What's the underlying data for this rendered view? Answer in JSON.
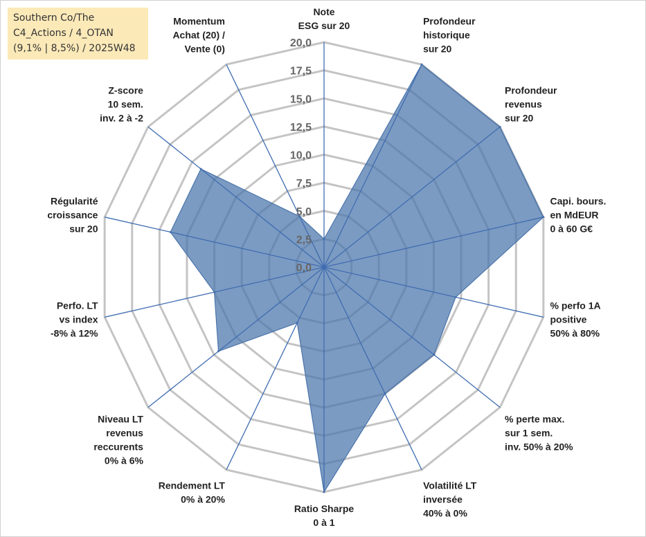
{
  "chart_data": {
    "type": "radar",
    "title_lines": [
      "Southern Co/The",
      "C4_Actions / 4_OTAN",
      "(9,1% | 8,5%) / 2025W48"
    ],
    "rmin": 0,
    "rmax": 20,
    "ticks": [
      "0,0",
      "2,5",
      "5,0",
      "7,5",
      "10,0",
      "12,5",
      "15,0",
      "17,5",
      "20,0"
    ],
    "grid": true,
    "series": [
      {
        "name": "Southern Co/The",
        "color": "#4a74ab",
        "fill_opacity": 0.72
      }
    ],
    "axes": [
      {
        "label_lines": [
          "Note",
          "ESG sur 20"
        ],
        "value": 2.5
      },
      {
        "label_lines": [
          "Profondeur",
          "historique",
          "sur 20"
        ],
        "value": 20
      },
      {
        "label_lines": [
          "Profondeur",
          "revenus",
          "sur 20"
        ],
        "value": 20
      },
      {
        "label_lines": [
          "Capi. bours.",
          "en MdEUR",
          "0 à 60 G€"
        ],
        "value": 20
      },
      {
        "label_lines": [
          "% perfo 1A",
          "positive",
          "50% à 80%"
        ],
        "value": 12
      },
      {
        "label_lines": [
          "% perte max.",
          "sur 1 sem.",
          "inv. 50% à 20%"
        ],
        "value": 12.5
      },
      {
        "label_lines": [
          "Volatilité LT",
          "inversée",
          "40% à 0%"
        ],
        "value": 12.5
      },
      {
        "label_lines": [
          "Ratio Sharpe",
          "0 à 1"
        ],
        "value": 20
      },
      {
        "label_lines": [
          "Rendement LT",
          "0% à 20%"
        ],
        "value": 5.5
      },
      {
        "label_lines": [
          "Niveau LT",
          "revenus",
          "reccurents",
          "0% à 6%"
        ],
        "value": 12
      },
      {
        "label_lines": [
          "Perfo. LT",
          "vs index",
          "-8% à 12%"
        ],
        "value": 10
      },
      {
        "label_lines": [
          "Régularité",
          "croissance",
          "sur 20"
        ],
        "value": 14
      },
      {
        "label_lines": [
          "Z-score",
          "10 sem.",
          "inv. 2 à -2"
        ],
        "value": 14
      },
      {
        "label_lines": [
          "Momentum",
          "Achat (20) /",
          "Vente (0)"
        ],
        "value": 5
      }
    ]
  }
}
